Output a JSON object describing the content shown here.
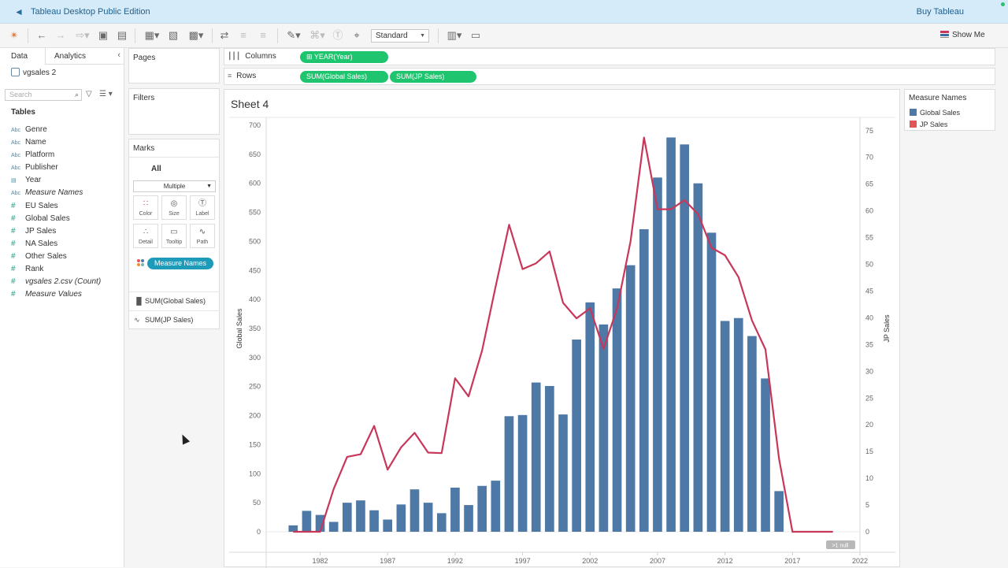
{
  "window": {
    "title": "Tableau Desktop Public Edition",
    "buy_label": "Buy Tableau"
  },
  "toolbar": {
    "fit_select": "Standard",
    "show_me": "Show Me"
  },
  "data_pane": {
    "tabs": [
      "Data",
      "Analytics"
    ],
    "datasource": "vgsales 2",
    "search_placeholder": "Search",
    "tables_header": "Tables",
    "fields": [
      {
        "icon": "Abc",
        "name": "Genre",
        "kind": "dim",
        "italic": false
      },
      {
        "icon": "Abc",
        "name": "Name",
        "kind": "dim",
        "italic": false
      },
      {
        "icon": "Abc",
        "name": "Platform",
        "kind": "dim",
        "italic": false
      },
      {
        "icon": "Abc",
        "name": "Publisher",
        "kind": "dim",
        "italic": false
      },
      {
        "icon": "date",
        "name": "Year",
        "kind": "dim",
        "italic": false
      },
      {
        "icon": "Abc",
        "name": "Measure Names",
        "kind": "dim",
        "italic": true
      },
      {
        "icon": "#",
        "name": "EU Sales",
        "kind": "meas",
        "italic": false
      },
      {
        "icon": "#",
        "name": "Global Sales",
        "kind": "meas",
        "italic": false
      },
      {
        "icon": "#",
        "name": "JP Sales",
        "kind": "meas",
        "italic": false
      },
      {
        "icon": "#",
        "name": "NA Sales",
        "kind": "meas",
        "italic": false
      },
      {
        "icon": "#",
        "name": "Other Sales",
        "kind": "meas",
        "italic": false
      },
      {
        "icon": "#",
        "name": "Rank",
        "kind": "meas",
        "italic": false
      },
      {
        "icon": "#",
        "name": "vgsales 2.csv (Count)",
        "kind": "meas",
        "italic": true
      },
      {
        "icon": "#",
        "name": "Measure Values",
        "kind": "meas",
        "italic": true
      }
    ]
  },
  "pages_card": {
    "title": "Pages"
  },
  "filters_card": {
    "title": "Filters"
  },
  "marks_card": {
    "title": "Marks",
    "all_label": "All",
    "mark_type": "Multiple",
    "buttons": [
      "Color",
      "Size",
      "Label",
      "Detail",
      "Tooltip",
      "Path"
    ],
    "color_pill": "Measure Names",
    "rows": [
      "SUM(Global Sales)",
      "SUM(JP Sales)"
    ]
  },
  "shelves": {
    "columns_label": "Columns",
    "rows_label": "Rows",
    "columns_pills": [
      "YEAR(Year)"
    ],
    "rows_pills": [
      "SUM(Global Sales)",
      "SUM(JP Sales)"
    ]
  },
  "sheet": {
    "title": "Sheet 4",
    "null_badge": ">1 null"
  },
  "legend": {
    "title": "Measure Names",
    "items": [
      {
        "label": "Global Sales",
        "color": "#4e79a7"
      },
      {
        "label": "JP Sales",
        "color": "#e15759"
      }
    ]
  },
  "chart_data": {
    "type": "bar",
    "x_label": "",
    "ylabel_left": "Global Sales",
    "ylabel_right": "JP Sales",
    "ylim_left": [
      0,
      700
    ],
    "yticks_left": [
      0,
      50,
      100,
      150,
      200,
      250,
      300,
      350,
      400,
      450,
      500,
      550,
      600,
      650,
      700
    ],
    "ylim_right": [
      0,
      76
    ],
    "yticks_right": [
      0,
      5,
      10,
      15,
      20,
      25,
      30,
      35,
      40,
      45,
      50,
      55,
      60,
      65,
      70,
      75
    ],
    "xlim": [
      1978,
      2022
    ],
    "xticks": [
      1982,
      1987,
      1992,
      1997,
      2002,
      2007,
      2012,
      2017,
      2022
    ],
    "x": [
      1980,
      1981,
      1982,
      1983,
      1984,
      1985,
      1986,
      1987,
      1988,
      1989,
      1990,
      1991,
      1992,
      1993,
      1994,
      1995,
      1996,
      1997,
      1998,
      1999,
      2000,
      2001,
      2002,
      2003,
      2004,
      2005,
      2006,
      2007,
      2008,
      2009,
      2010,
      2011,
      2012,
      2013,
      2014,
      2015,
      2016,
      2017,
      2018,
      2019,
      2020
    ],
    "series": [
      {
        "name": "Global Sales",
        "kind": "bar",
        "axis": "left",
        "color": "#4e79a7",
        "values": [
          11,
          36,
          29,
          17,
          50,
          54,
          37,
          21,
          47,
          73,
          50,
          32,
          76,
          46,
          79,
          88,
          199,
          201,
          257,
          251,
          202,
          331,
          395,
          357,
          419,
          459,
          521,
          610,
          679,
          667,
          600,
          515,
          363,
          368,
          337,
          264,
          70,
          null,
          null,
          null,
          null
        ]
      },
      {
        "name": "JP Sales",
        "kind": "line",
        "axis": "right",
        "color": "#e15759",
        "values": [
          0,
          0,
          0,
          8,
          14,
          14.5,
          19.8,
          11.6,
          15.8,
          18.5,
          14.8,
          14.7,
          28.7,
          25.3,
          33.9,
          45.8,
          57.4,
          49.1,
          50.2,
          52.4,
          42.8,
          39.9,
          41.8,
          34.2,
          41.7,
          54.3,
          73.7,
          60.3,
          60.3,
          62,
          59.4,
          53.1,
          51.7,
          47.6,
          39.5,
          34.1,
          13.7,
          0,
          0,
          0,
          0
        ]
      }
    ]
  }
}
